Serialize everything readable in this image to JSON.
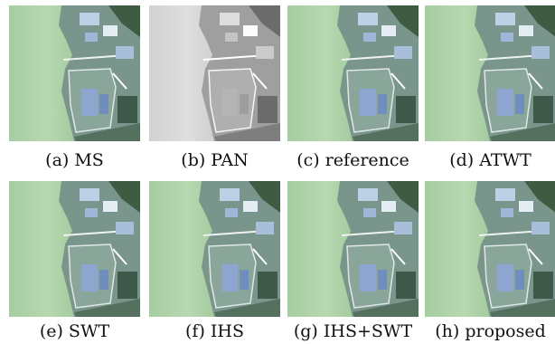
{
  "panels": [
    {
      "caption": "(a) MS"
    },
    {
      "caption": "(b) PAN"
    },
    {
      "caption": "(c) reference"
    },
    {
      "caption": "(d) ATWT"
    },
    {
      "caption": "(e) SWT"
    },
    {
      "caption": "(f) IHS"
    },
    {
      "caption": "(g) IHS+SWT"
    },
    {
      "caption": "(h) proposed"
    }
  ]
}
